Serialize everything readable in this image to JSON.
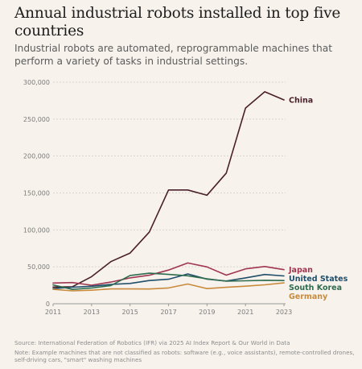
{
  "header": {
    "title": "Annual industrial robots installed in top five countries",
    "subtitle": "Industrial robots are automated, reprogrammable machines that perform a variety of tasks in industrial settings."
  },
  "footer": {
    "source": "Source: International Federation of Robotics (IFR) via 2025 AI Index Report & Our World in Data",
    "note": "Note: Example machines that are not classified as robots: software (e.g., voice assistants), remote-controlled drones, self-driving cars, \"smart\" washing machines"
  },
  "chart_data": {
    "type": "line",
    "x": [
      2011,
      2012,
      2013,
      2014,
      2015,
      2016,
      2017,
      2018,
      2019,
      2020,
      2021,
      2022,
      2023
    ],
    "x_ticks": [
      2011,
      2013,
      2015,
      2017,
      2019,
      2021,
      2023
    ],
    "y_ticks": [
      0,
      50000,
      100000,
      150000,
      200000,
      250000,
      300000
    ],
    "y_tick_labels": [
      "0",
      "50,000",
      "100,000",
      "150,000",
      "200,000",
      "250,000",
      "300,000"
    ],
    "ylim": [
      0,
      300000
    ],
    "grid": "horizontal",
    "legend": "right, end-of-line labels",
    "series": [
      {
        "name": "China",
        "color": "#4a1f2a",
        "values": [
          22600,
          23000,
          36600,
          57100,
          68600,
          97000,
          154000,
          154000,
          147000,
          177000,
          265000,
          287000,
          276000
        ]
      },
      {
        "name": "Japan",
        "color": "#a03550",
        "values": [
          28000,
          28700,
          25100,
          29300,
          35000,
          38600,
          45600,
          55200,
          49900,
          38700,
          47200,
          50400,
          46100
        ]
      },
      {
        "name": "United States",
        "color": "#1f4e6b",
        "values": [
          20500,
          22400,
          23700,
          26200,
          27500,
          31400,
          33200,
          40400,
          33300,
          30800,
          35000,
          39600,
          37600
        ]
      },
      {
        "name": "South Korea",
        "color": "#2e6b4f",
        "values": [
          25500,
          19400,
          21300,
          24700,
          38300,
          41400,
          39700,
          37800,
          33700,
          30500,
          31100,
          31700,
          31400
        ]
      },
      {
        "name": "Germany",
        "color": "#c98a3c",
        "values": [
          19500,
          17500,
          18300,
          20100,
          20100,
          20000,
          21400,
          26700,
          20500,
          22300,
          23800,
          25600,
          28300
        ]
      }
    ]
  }
}
